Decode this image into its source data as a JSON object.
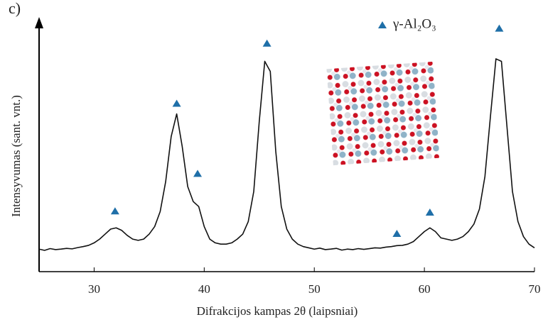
{
  "chart_data": {
    "type": "line",
    "panel_label": "c)",
    "xlabel": "Difrakcijos kampas 2θ (laipsniai)",
    "ylabel": "Intensyvumas (sant. vnt.)",
    "xlim": [
      25,
      70
    ],
    "ylim": [
      0,
      100
    ],
    "xticks": [
      30,
      40,
      50,
      60,
      70
    ],
    "x": [
      25,
      25.5,
      26,
      26.5,
      27,
      27.5,
      28,
      28.5,
      29,
      29.5,
      30,
      30.5,
      31,
      31.5,
      32,
      32.5,
      33,
      33.5,
      34,
      34.5,
      35,
      35.5,
      36,
      36.5,
      37,
      37.5,
      38,
      38.5,
      39,
      39.5,
      40,
      40.5,
      41,
      41.5,
      42,
      42.5,
      43,
      43.5,
      44,
      44.5,
      45,
      45.5,
      46,
      46.5,
      47,
      47.5,
      48,
      48.5,
      49,
      49.5,
      50,
      50.5,
      51,
      51.5,
      52,
      52.5,
      53,
      53.5,
      54,
      54.5,
      55,
      55.5,
      56,
      56.5,
      57,
      57.5,
      58,
      58.5,
      59,
      59.5,
      60,
      60.5,
      61,
      61.5,
      62,
      62.5,
      63,
      63.5,
      64,
      64.5,
      65,
      65.5,
      66,
      66.5,
      67,
      67.5,
      68,
      68.5,
      69,
      69.5,
      70
    ],
    "series": [
      {
        "color": "#111111",
        "values": [
          9,
          8.5,
          9.2,
          8.8,
          9,
          9.3,
          9.1,
          9.6,
          10,
          10.5,
          11.5,
          13,
          15,
          17,
          17.5,
          16.5,
          14.5,
          13,
          12.5,
          13,
          15,
          18,
          24,
          36,
          54,
          63,
          50,
          34,
          28,
          26,
          18,
          13,
          11.5,
          11,
          11,
          11.5,
          13,
          15,
          20,
          32,
          60,
          84,
          80,
          48,
          26,
          17,
          13,
          11,
          10,
          9.5,
          9,
          9.4,
          8.8,
          9,
          9.3,
          8.6,
          9,
          8.8,
          9.2,
          8.9,
          9.2,
          9.5,
          9.4,
          9.8,
          10,
          10.4,
          10.5,
          11,
          12,
          14,
          16,
          17.5,
          16,
          13.5,
          13,
          12.5,
          13,
          14,
          16,
          19,
          25,
          38,
          62,
          85,
          84,
          58,
          32,
          20,
          14,
          11,
          9.5
        ]
      },
      {
        "type": "scatter",
        "name": "γ-Al₂O₃",
        "color": "#1f6fa8",
        "x": [
          31.9,
          37.5,
          39.4,
          45.7,
          57.5,
          60.5,
          66.8
        ],
        "values": [
          24,
          67,
          39,
          91,
          15,
          23.5,
          97
        ]
      }
    ]
  }
}
